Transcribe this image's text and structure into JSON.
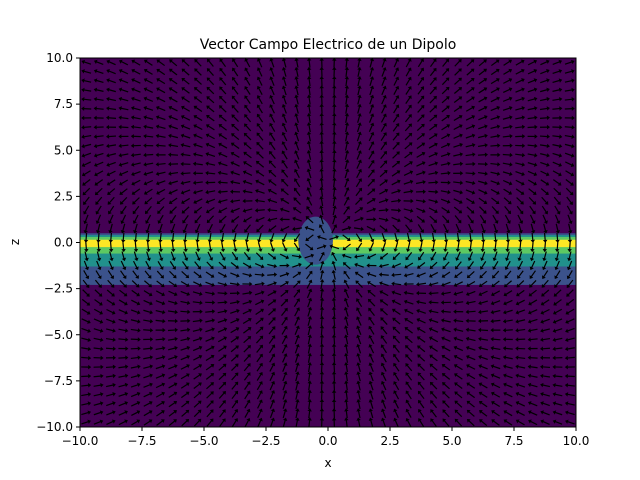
{
  "chart_data": {
    "type": "heatmap",
    "title": "Vector Campo Electrico de un Dipolo",
    "xlabel": "x",
    "ylabel": "z",
    "xlim": [
      -10,
      10
    ],
    "ylim": [
      -10,
      10
    ],
    "x_ticks": [
      -10,
      -7.5,
      -5,
      -2.5,
      0,
      2.5,
      5,
      7.5,
      10
    ],
    "y_ticks": [
      -10,
      -7.5,
      -5,
      -2.5,
      0,
      2.5,
      5,
      7.5,
      10
    ],
    "x_tick_labels": [
      "−10.0",
      "−7.5",
      "−5.0",
      "−2.5",
      "0.0",
      "2.5",
      "5.0",
      "7.5",
      "10.0"
    ],
    "y_tick_labels": [
      "−10.0",
      "−7.5",
      "−5.0",
      "−2.5",
      "0.0",
      "2.5",
      "5.0",
      "7.5",
      "10.0"
    ],
    "grid": false,
    "contour_levels": [
      {
        "x0": -10,
        "x1": 10,
        "z0": -2.3,
        "z1": 0.5,
        "color": "#3b528b"
      },
      {
        "x0": -10,
        "x1": 10,
        "z0": -1.3,
        "z1": 0.4,
        "color": "#21918c"
      },
      {
        "x0": -10,
        "x1": 10,
        "z0": -0.6,
        "z1": 0.3,
        "color": "#5ec962"
      },
      {
        "x0": -10,
        "x1": 10,
        "z0": -0.25,
        "z1": 0.15,
        "color": "#fde725"
      }
    ],
    "center_blob": {
      "x0": -1.2,
      "x1": 0.2,
      "z0": -1.2,
      "z1": 1.4,
      "color": "#3b528b"
    },
    "background_color": "#440154",
    "quiver": {
      "color": "#000000",
      "x_range": [
        -10,
        10
      ],
      "z_range": [
        -10,
        10
      ],
      "count_x": 40,
      "count_z": 40,
      "dipole_position": [
        0,
        0
      ]
    }
  }
}
